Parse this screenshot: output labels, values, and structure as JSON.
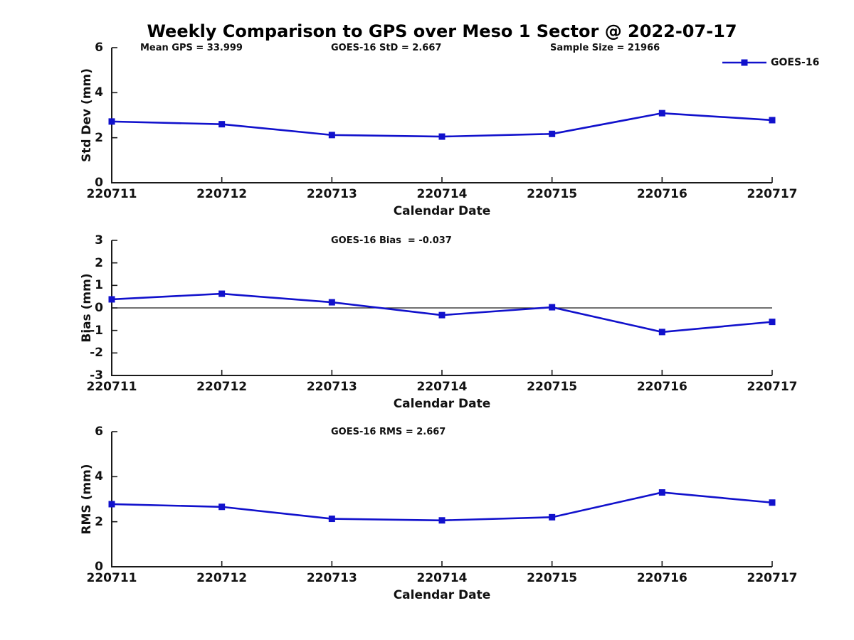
{
  "title": "Weekly Comparison to GPS over Meso 1 Sector @ 2022-07-17",
  "line_color": "#1111cc",
  "text_color": "#111111",
  "chart_data": [
    {
      "type": "line",
      "name": "std-dev",
      "annotations": [
        "Mean GPS = 33.999",
        "GOES-16 StD = 2.667",
        "Sample Size = 21966"
      ],
      "ylabel": "Std Dev (mm)",
      "xlabel": "Calendar Date",
      "ylim": [
        0,
        6
      ],
      "yticks": [
        0,
        2,
        4,
        6
      ],
      "categories": [
        "220711",
        "220712",
        "220713",
        "220714",
        "220715",
        "220716",
        "220717"
      ],
      "series": [
        {
          "name": "GOES-16",
          "values": [
            2.72,
            2.6,
            2.12,
            2.05,
            2.17,
            3.09,
            2.78
          ]
        }
      ],
      "legend": {
        "label": "GOES-16",
        "position": "top-right"
      },
      "zero_line": false,
      "grid": false
    },
    {
      "type": "line",
      "name": "bias",
      "annotations": [
        "GOES-16 Bias  = -0.037"
      ],
      "ylabel": "Bias (mm)",
      "xlabel": "Calendar Date",
      "ylim": [
        -3,
        3
      ],
      "yticks": [
        3,
        2,
        1,
        0,
        -1,
        -2,
        -3
      ],
      "categories": [
        "220711",
        "220712",
        "220713",
        "220714",
        "220715",
        "220716",
        "220717"
      ],
      "series": [
        {
          "name": "GOES-16",
          "values": [
            0.38,
            0.63,
            0.25,
            -0.32,
            0.03,
            -1.07,
            -0.62
          ]
        }
      ],
      "zero_line": true,
      "grid": false
    },
    {
      "type": "line",
      "name": "rms",
      "annotations": [
        "GOES-16 RMS = 2.667"
      ],
      "ylabel": "RMS (mm)",
      "xlabel": "Calendar Date",
      "ylim": [
        0,
        6
      ],
      "yticks": [
        0,
        2,
        4,
        6
      ],
      "categories": [
        "220711",
        "220712",
        "220713",
        "220714",
        "220715",
        "220716",
        "220717"
      ],
      "series": [
        {
          "name": "GOES-16",
          "values": [
            2.78,
            2.66,
            2.13,
            2.06,
            2.2,
            3.3,
            2.85
          ]
        }
      ],
      "zero_line": false,
      "grid": false
    }
  ]
}
